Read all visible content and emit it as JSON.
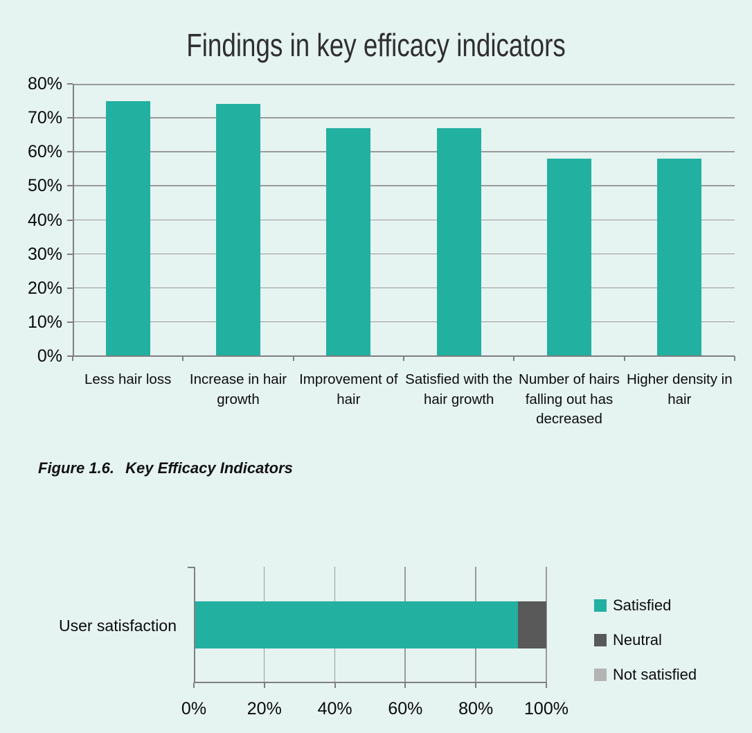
{
  "page": {
    "background": "#E5F3F1"
  },
  "colors": {
    "accent_teal": "#22B0A0",
    "neutral_gray": "#595959",
    "not_satisfied_gray": "#B3B3B3",
    "gridline": "#9A9A9A",
    "axis": "#7F7F7F"
  },
  "chart_data": [
    {
      "type": "bar",
      "title": "Findings in key efficacy indicators",
      "categories": [
        "Less hair loss",
        "Increase in hair growth",
        "Improvement of hair",
        "Satisfied with the hair growth",
        "Number of hairs falling out has decreased",
        "Higher density in hair"
      ],
      "values": [
        75,
        74,
        67,
        67,
        58,
        58
      ],
      "unit": "%",
      "xlabel": "",
      "ylabel": "",
      "ylim": [
        0,
        80
      ],
      "ytick_labels": [
        "0%",
        "10%",
        "20%",
        "30%",
        "40%",
        "50%",
        "60%",
        "70%",
        "80%"
      ],
      "grid": true,
      "legend": false,
      "bar_color": "#22B0A0"
    },
    {
      "type": "stacked-bar-horizontal",
      "title": "",
      "categories": [
        "User satisfaction"
      ],
      "series": [
        {
          "name": "Satisfied",
          "values": [
            92
          ],
          "color": "#22B0A0"
        },
        {
          "name": "Neutral",
          "values": [
            8
          ],
          "color": "#595959"
        },
        {
          "name": "Not satisfied",
          "values": [
            0
          ],
          "color": "#B3B3B3"
        }
      ],
      "xlim": [
        0,
        100
      ],
      "xtick_labels": [
        "0%",
        "20%",
        "40%",
        "60%",
        "80%",
        "100%"
      ],
      "grid": true,
      "legend_position": "right"
    }
  ],
  "caption": {
    "label": "Figure 1.6.",
    "text": "Key Efficacy Indicators"
  }
}
